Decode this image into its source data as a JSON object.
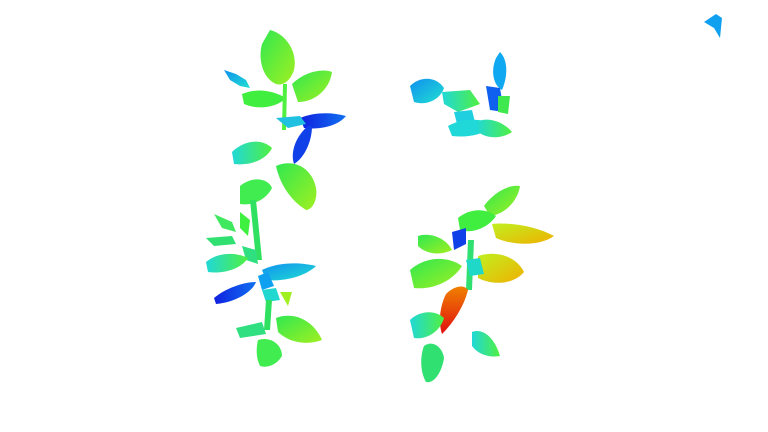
{
  "image": {
    "description_kind": "depth-colored plant leaf segmentation on white background",
    "background_color": "#ffffff",
    "palette": {
      "far": "#1030e0",
      "mid_far": "#10b0f0",
      "cyan": "#20e0d0",
      "green": "#40f040",
      "lime": "#90f020",
      "near": "#e8d000",
      "nearest": "#e02010"
    },
    "objects": [
      {
        "name": "left-plant",
        "kind": "plant"
      },
      {
        "name": "top-right-plant",
        "kind": "plant"
      },
      {
        "name": "bottom-right-plant",
        "kind": "plant"
      },
      {
        "name": "small-fragment",
        "kind": "leaf-fragment"
      }
    ]
  }
}
